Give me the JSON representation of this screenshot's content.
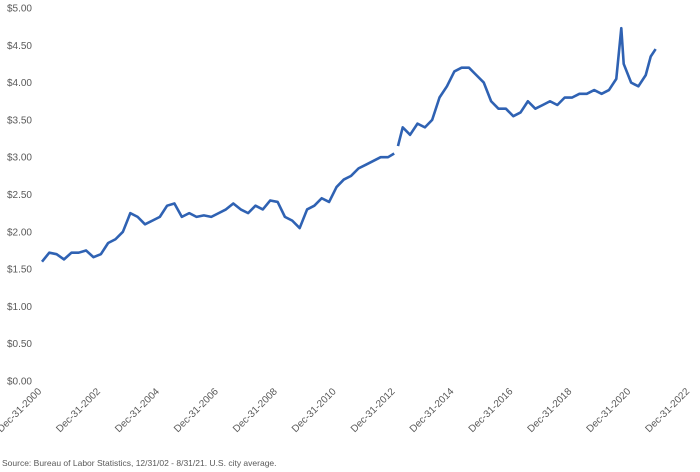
{
  "chart_data": {
    "type": "line",
    "source": "Source: Bureau of Labor Statistics, 12/31/02 - 8/31/21. U.S. city average.",
    "color": "#2f62b3",
    "x": [
      "2000-12-31",
      "2001-03-31",
      "2001-06-30",
      "2001-09-30",
      "2001-12-31",
      "2002-03-31",
      "2002-06-30",
      "2002-09-30",
      "2002-12-31",
      "2003-03-31",
      "2003-06-30",
      "2003-09-30",
      "2003-12-31",
      "2004-03-31",
      "2004-06-30",
      "2004-09-30",
      "2004-12-31",
      "2005-03-31",
      "2005-06-30",
      "2005-09-30",
      "2005-12-31",
      "2006-03-31",
      "2006-06-30",
      "2006-09-30",
      "2006-12-31",
      "2007-03-31",
      "2007-06-30",
      "2007-09-30",
      "2007-12-31",
      "2008-03-31",
      "2008-06-30",
      "2008-09-30",
      "2008-12-31",
      "2009-03-31",
      "2009-06-30",
      "2009-09-30",
      "2009-12-31",
      "2010-03-31",
      "2010-06-30",
      "2010-09-30",
      "2010-12-31",
      "2011-03-31",
      "2011-06-30",
      "2011-09-30",
      "2011-12-31",
      "2012-03-31",
      "2012-06-30",
      "2012-09-30",
      "2012-12-15",
      "2012-12-31",
      "2013-01-31",
      "2013-03-31",
      "2013-06-30",
      "2013-09-30",
      "2013-12-31",
      "2014-03-31",
      "2014-06-30",
      "2014-09-30",
      "2014-12-31",
      "2015-03-31",
      "2015-06-30",
      "2015-09-30",
      "2015-12-31",
      "2016-03-31",
      "2016-06-30",
      "2016-09-30",
      "2016-12-31",
      "2017-03-31",
      "2017-06-30",
      "2017-09-30",
      "2017-12-31",
      "2018-03-31",
      "2018-06-30",
      "2018-09-30",
      "2018-12-31",
      "2019-03-31",
      "2019-06-30",
      "2019-09-30",
      "2019-12-31",
      "2020-03-31",
      "2020-06-30",
      "2020-08-31",
      "2020-09-30",
      "2020-12-31",
      "2021-03-31",
      "2021-06-30",
      "2021-08-31",
      "2021-10-31"
    ],
    "values": [
      1.6,
      1.72,
      1.7,
      1.63,
      1.72,
      1.72,
      1.75,
      1.66,
      1.7,
      1.85,
      1.9,
      2.0,
      2.25,
      2.2,
      2.1,
      2.15,
      2.2,
      2.35,
      2.38,
      2.2,
      2.25,
      2.2,
      2.22,
      2.2,
      2.25,
      2.3,
      2.38,
      2.3,
      2.25,
      2.35,
      2.3,
      2.42,
      2.4,
      2.2,
      2.15,
      2.05,
      2.3,
      2.35,
      2.45,
      2.4,
      2.6,
      2.7,
      2.75,
      2.85,
      2.9,
      2.95,
      3.0,
      3.0,
      3.05,
      null,
      3.15,
      3.4,
      3.3,
      3.45,
      3.4,
      3.5,
      3.8,
      3.95,
      4.15,
      4.2,
      4.2,
      4.1,
      4.0,
      3.75,
      3.65,
      3.65,
      3.55,
      3.6,
      3.75,
      3.65,
      3.7,
      3.75,
      3.7,
      3.8,
      3.8,
      3.85,
      3.85,
      3.9,
      3.85,
      3.9,
      4.05,
      4.73,
      4.25,
      4.0,
      3.95,
      4.1,
      4.35,
      4.45
    ],
    "xlim": [
      "2000-12-31",
      "2022-12-31"
    ],
    "xticks": [
      {
        "value": "2000-12-31",
        "label": "Dec-31-2000"
      },
      {
        "value": "2002-12-31",
        "label": "Dec-31-2002"
      },
      {
        "value": "2004-12-31",
        "label": "Dec-31-2004"
      },
      {
        "value": "2006-12-31",
        "label": "Dec-31-2006"
      },
      {
        "value": "2008-12-31",
        "label": "Dec-31-2008"
      },
      {
        "value": "2010-12-31",
        "label": "Dec-31-2010"
      },
      {
        "value": "2012-12-31",
        "label": "Dec-31-2012"
      },
      {
        "value": "2014-12-31",
        "label": "Dec-31-2014"
      },
      {
        "value": "2016-12-31",
        "label": "Dec-31-2016"
      },
      {
        "value": "2018-12-31",
        "label": "Dec-31-2018"
      },
      {
        "value": "2020-12-31",
        "label": "Dec-31-2020"
      },
      {
        "value": "2022-12-31",
        "label": "Dec-31-2022"
      }
    ],
    "ylim": [
      0,
      5
    ],
    "yticks": [
      {
        "value": 0,
        "label": "$0.00"
      },
      {
        "value": 0.5,
        "label": "$0.50"
      },
      {
        "value": 1,
        "label": "$1.00"
      },
      {
        "value": 1.5,
        "label": "$1.50"
      },
      {
        "value": 2,
        "label": "$2.00"
      },
      {
        "value": 2.5,
        "label": "$2.50"
      },
      {
        "value": 3,
        "label": "$3.00"
      },
      {
        "value": 3.5,
        "label": "$3.50"
      },
      {
        "value": 4,
        "label": "$4.00"
      },
      {
        "value": 4.5,
        "label": "$4.50"
      },
      {
        "value": 5,
        "label": "$5.00"
      }
    ]
  }
}
